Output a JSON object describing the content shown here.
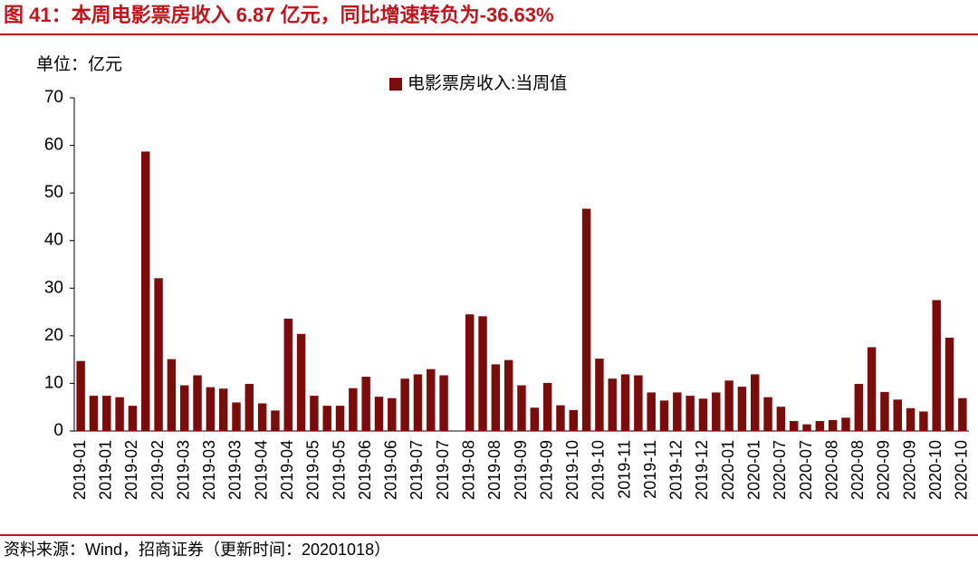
{
  "chart_data": {
    "type": "bar",
    "title": "图 41：本周电影票房收入 6.87 亿元，同比增速转负为-36.63%",
    "unit_label": "单位：亿元",
    "source": "资料来源：Wind，招商证券（更新时间：20201018）",
    "categories": [
      "2019-01",
      null,
      "2019-01",
      null,
      "2019-02",
      null,
      "2019-02",
      null,
      "2019-03",
      null,
      "2019-03",
      null,
      "2019-03",
      null,
      "2019-04",
      null,
      "2019-04",
      null,
      "2019-05",
      null,
      "2019-05",
      null,
      "2019-06",
      null,
      "2019-06",
      null,
      "2019-07",
      null,
      "2019-07",
      null,
      "2019-08",
      null,
      "2019-08",
      null,
      "2019-09",
      null,
      "2019-09",
      null,
      "2019-10",
      null,
      "2019-10",
      null,
      "2019-11",
      null,
      "2019-11",
      null,
      "2019-12",
      null,
      "2019-12",
      null,
      "2020-01",
      null,
      "2020-01",
      null,
      "2020-07",
      null,
      "2020-07",
      null,
      "2020-08",
      null,
      "2020-08",
      null,
      "2020-09",
      null,
      "2020-09",
      null,
      "2020-10",
      null,
      "2020-10"
    ],
    "series": [
      {
        "name": "电影票房收入:当周值",
        "color": "#7b0c0c",
        "values": [
          14.7,
          7.4,
          7.4,
          7.1,
          5.3,
          58.7,
          32.1,
          15.1,
          9.6,
          11.7,
          9.2,
          8.9,
          6.0,
          9.9,
          5.8,
          4.3,
          23.6,
          20.4,
          7.4,
          5.3,
          5.3,
          9.0,
          11.4,
          7.2,
          6.9,
          11.0,
          11.9,
          13.0,
          11.7,
          null,
          24.5,
          24.1,
          14.0,
          14.9,
          9.6,
          4.9,
          10.1,
          5.4,
          4.4,
          46.7,
          15.2,
          11.0,
          11.9,
          11.7,
          8.1,
          6.4,
          8.1,
          7.4,
          6.8,
          8.1,
          10.6,
          9.3,
          11.9,
          7.1,
          5.1,
          2.1,
          1.4,
          2.1,
          2.3,
          2.8,
          9.9,
          17.6,
          8.2,
          6.6,
          4.8,
          4.1,
          27.5,
          19.6,
          6.9
        ]
      }
    ],
    "ylim": [
      0,
      70
    ],
    "yticks": [
      0,
      10,
      20,
      30,
      40,
      50,
      60,
      70
    ],
    "grid": false,
    "legend": "top"
  }
}
